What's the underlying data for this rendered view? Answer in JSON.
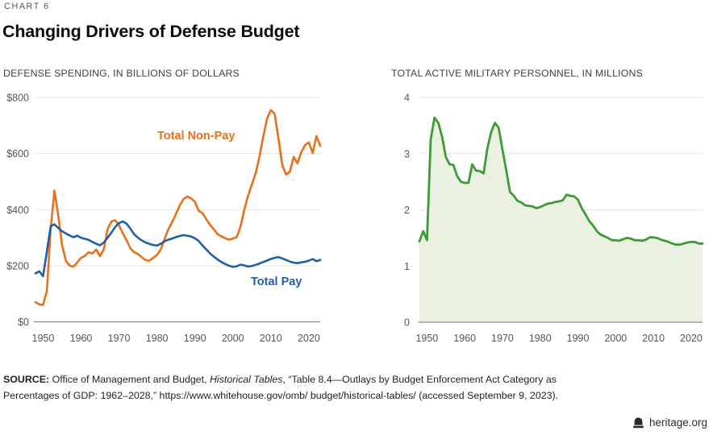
{
  "page": {
    "kicker": "CHART 6",
    "title": "Changing Drivers of Defense Budget",
    "footer_brand": "heritage.org"
  },
  "source": {
    "label": "SOURCE:",
    "line1_pre_italic": " Office of Management and Budget, ",
    "line1_italic": "Historical Tables",
    "line1_post_italic": ", “Table 8.4—Outlays by Budget Enforcement Act Category as",
    "line2": "Percentages of GDP: 1962–2028,” https://www.whitehouse.gov/omb/ budget/historical-tables/ (accessed September 9, 2023)."
  },
  "chart_data": [
    {
      "type": "line",
      "title": "DEFENSE SPENDING, IN BILLIONS OF DOLLARS",
      "x_years": {
        "start": 1948,
        "end": 2023,
        "step": 1
      },
      "xticks": [
        1950,
        1960,
        1970,
        1980,
        1990,
        2000,
        2010,
        2020
      ],
      "ylim": [
        0,
        800
      ],
      "yticks": {
        "values": [
          0,
          200,
          400,
          600,
          800
        ],
        "labels": [
          "$0",
          "$200",
          "$400",
          "$600",
          "$800"
        ]
      },
      "grid": true,
      "legend_position": "inline-labels",
      "grid_color": "#e4e4e4",
      "axis_color": "#8c8c8c",
      "series": [
        {
          "name": "Total Non-Pay",
          "color": "#e8701a",
          "values": [
            70,
            62,
            60,
            110,
            330,
            468,
            380,
            275,
            218,
            200,
            197,
            212,
            228,
            235,
            248,
            244,
            258,
            234,
            258,
            330,
            358,
            362,
            345,
            315,
            290,
            262,
            248,
            242,
            230,
            220,
            218,
            228,
            238,
            258,
            295,
            330,
            355,
            385,
            415,
            438,
            447,
            440,
            428,
            395,
            388,
            365,
            345,
            330,
            312,
            305,
            298,
            293,
            297,
            302,
            340,
            400,
            450,
            490,
            530,
            590,
            660,
            725,
            755,
            742,
            655,
            560,
            525,
            535,
            588,
            565,
            605,
            630,
            640,
            602,
            662,
            628
          ]
        },
        {
          "name": "Total Pay",
          "color": "#1e5fac",
          "values": [
            173,
            180,
            163,
            250,
            340,
            348,
            335,
            323,
            315,
            308,
            302,
            307,
            300,
            296,
            292,
            285,
            278,
            273,
            283,
            300,
            318,
            338,
            352,
            358,
            350,
            332,
            312,
            300,
            290,
            283,
            278,
            274,
            272,
            278,
            287,
            293,
            297,
            302,
            306,
            309,
            307,
            304,
            298,
            288,
            272,
            258,
            244,
            232,
            222,
            213,
            206,
            200,
            196,
            198,
            204,
            201,
            197,
            199,
            203,
            208,
            213,
            219,
            224,
            228,
            231,
            226,
            221,
            215,
            211,
            209,
            212,
            214,
            218,
            224,
            216,
            221
          ]
        }
      ]
    },
    {
      "type": "area",
      "title": "TOTAL ACTIVE MILITARY PERSONNEL, IN MILLIONS",
      "x_years": {
        "start": 1948,
        "end": 2023,
        "step": 1
      },
      "xticks": [
        1950,
        1960,
        1970,
        1980,
        1990,
        2000,
        2010,
        2020
      ],
      "ylim": [
        0,
        4
      ],
      "yticks": {
        "values": [
          0,
          1,
          2,
          3,
          4
        ],
        "labels": [
          "0",
          "1",
          "2",
          "3",
          "4"
        ]
      },
      "grid": true,
      "legend_position": "none",
      "grid_color": "#e4e4e4",
      "axis_color": "#8c8c8c",
      "series": [
        {
          "name": "Total Active Military Personnel",
          "color": "#3d9b35",
          "fill": "#eaf1e3",
          "values": [
            1.44,
            1.62,
            1.46,
            3.25,
            3.64,
            3.55,
            3.3,
            2.94,
            2.81,
            2.8,
            2.6,
            2.5,
            2.48,
            2.48,
            2.81,
            2.7,
            2.69,
            2.65,
            3.09,
            3.38,
            3.55,
            3.46,
            3.07,
            2.71,
            2.32,
            2.25,
            2.16,
            2.13,
            2.08,
            2.07,
            2.06,
            2.03,
            2.05,
            2.08,
            2.11,
            2.12,
            2.14,
            2.15,
            2.17,
            2.27,
            2.25,
            2.24,
            2.18,
            2.03,
            1.92,
            1.8,
            1.72,
            1.62,
            1.56,
            1.53,
            1.5,
            1.46,
            1.46,
            1.45,
            1.48,
            1.5,
            1.49,
            1.46,
            1.46,
            1.45,
            1.47,
            1.51,
            1.51,
            1.5,
            1.47,
            1.45,
            1.43,
            1.4,
            1.38,
            1.38,
            1.4,
            1.42,
            1.43,
            1.43,
            1.4,
            1.4
          ]
        }
      ]
    }
  ]
}
